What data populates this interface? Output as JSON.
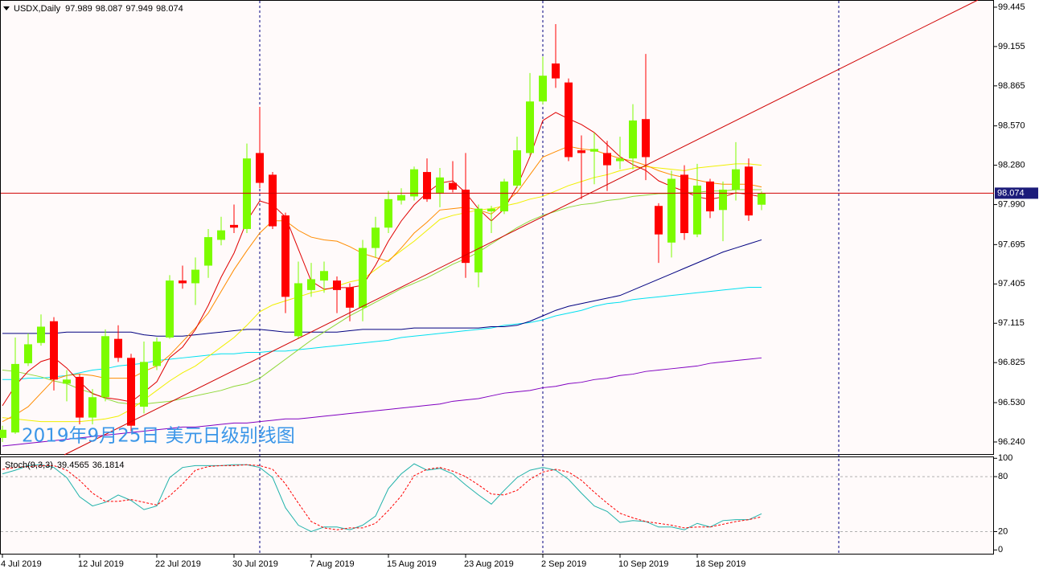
{
  "chart_data": {
    "type": "candlestick",
    "title": "USDX,Daily",
    "annotation": "2019年9月25日 美元日级别线图",
    "categories": [
      "4 Jul 2019",
      null,
      null,
      null,
      null,
      null,
      "12 Jul 2019",
      null,
      null,
      null,
      null,
      null,
      "22 Jul 2019",
      null,
      null,
      null,
      null,
      null,
      "30 Jul 2019",
      null,
      null,
      null,
      null,
      null,
      "7 Aug 2019",
      null,
      null,
      null,
      null,
      null,
      "15 Aug 2019",
      null,
      null,
      null,
      null,
      null,
      "23 Aug 2019",
      null,
      null,
      null,
      null,
      null,
      "2 Sep 2019",
      null,
      null,
      null,
      null,
      null,
      "10 Sep 2019",
      null,
      null,
      null,
      null,
      null,
      "18 Sep 2019",
      null,
      null,
      null,
      null,
      null
    ],
    "open": [
      96.27,
      96.31,
      96.82,
      96.97,
      97.13,
      96.67,
      96.72,
      96.42,
      96.57,
      97.0,
      96.86,
      96.5,
      96.8,
      97.01,
      97.43,
      97.41,
      97.54,
      97.73,
      97.84,
      97.81,
      98.37,
      98.21,
      97.91,
      97.02,
      97.36,
      97.43,
      97.43,
      97.38,
      97.23,
      97.67,
      97.82,
      98.02,
      98.05,
      98.23,
      98.07,
      98.15,
      98.1,
      97.49,
      97.94,
      97.94,
      98.13,
      98.37,
      98.75,
      99.03,
      98.89,
      98.39,
      98.38,
      98.37,
      98.31,
      98.33,
      98.62,
      97.98,
      97.71,
      98.21,
      97.77,
      98.16,
      97.95,
      98.1,
      98.27,
      97.989
    ],
    "high": [
      96.36,
      97.01,
      97.04,
      97.18,
      97.16,
      96.77,
      96.74,
      96.63,
      97.07,
      97.1,
      96.89,
      96.98,
      97.01,
      97.47,
      97.54,
      97.6,
      97.81,
      97.9,
      97.99,
      98.44,
      98.71,
      98.23,
      97.93,
      97.57,
      97.56,
      97.57,
      97.46,
      97.41,
      97.73,
      97.9,
      98.09,
      98.11,
      98.27,
      98.33,
      98.26,
      98.31,
      98.37,
      97.99,
      97.98,
      98.18,
      98.49,
      98.96,
      99.08,
      99.32,
      98.92,
      98.5,
      98.52,
      98.46,
      98.49,
      98.73,
      99.1,
      98.0,
      98.24,
      98.28,
      98.29,
      98.18,
      98.16,
      98.45,
      98.33,
      98.087
    ],
    "low": [
      96.24,
      96.3,
      96.8,
      96.95,
      96.62,
      96.54,
      96.37,
      96.37,
      96.54,
      96.83,
      96.32,
      96.45,
      96.77,
      97.0,
      97.37,
      97.25,
      97.45,
      97.69,
      97.78,
      97.78,
      98.11,
      97.81,
      97.19,
      97.0,
      97.31,
      97.34,
      97.19,
      97.13,
      97.13,
      97.6,
      97.78,
      97.99,
      98.02,
      98.01,
      97.97,
      98.08,
      97.45,
      97.38,
      97.78,
      97.92,
      98.11,
      98.35,
      98.73,
      98.85,
      98.31,
      98.03,
      98.14,
      98.09,
      98.25,
      98.25,
      98.17,
      97.56,
      97.6,
      97.73,
      97.75,
      97.89,
      97.72,
      98.02,
      97.87,
      97.949
    ],
    "close": [
      96.33,
      96.815,
      96.96,
      97.09,
      96.7,
      96.7,
      96.42,
      96.57,
      97.02,
      96.86,
      96.36,
      96.83,
      96.98,
      97.43,
      97.41,
      97.51,
      97.75,
      97.8,
      97.82,
      98.33,
      98.15,
      97.83,
      97.31,
      97.41,
      97.44,
      97.5,
      97.36,
      97.23,
      97.67,
      97.82,
      98.03,
      98.06,
      98.25,
      98.03,
      98.19,
      98.1,
      97.56,
      97.96,
      97.96,
      98.16,
      98.39,
      98.75,
      98.94,
      98.92,
      98.34,
      98.37,
      98.4,
      98.28,
      98.33,
      98.61,
      98.34,
      97.77,
      98.18,
      97.78,
      98.13,
      97.94,
      98.1,
      98.25,
      97.91,
      98.074
    ],
    "up_color": "#7cfc00",
    "down_color": "#ff0000",
    "ylim": [
      96.145,
      99.498
    ],
    "yticks": [
      99.445,
      99.155,
      98.865,
      {
        "value": 98.57,
        "label": "98.570"
      },
      {
        "value": 98.28,
        "label": "98.280"
      },
      {
        "value": 97.99,
        "label": "97.990"
      },
      97.695,
      97.405,
      97.115,
      96.825,
      {
        "value": 96.53,
        "label": "96.530"
      },
      {
        "value": 96.24,
        "label": "96.240"
      }
    ],
    "overlays": [
      {
        "color": "#8000c0",
        "values": [
          96.21,
          96.22,
          96.23,
          96.24,
          96.25,
          96.26,
          96.27,
          96.28,
          96.29,
          96.3,
          96.31,
          96.32,
          96.33,
          96.34,
          96.35,
          96.35,
          96.36,
          96.37,
          96.38,
          96.38,
          96.39,
          96.4,
          96.41,
          96.41,
          96.42,
          96.43,
          96.44,
          96.45,
          96.46,
          96.47,
          96.48,
          96.49,
          96.5,
          96.51,
          96.52,
          96.54,
          96.55,
          96.56,
          96.58,
          96.6,
          96.61,
          96.62,
          96.64,
          96.65,
          96.67,
          96.68,
          96.7,
          96.71,
          96.73,
          96.74,
          96.76,
          96.77,
          96.78,
          96.79,
          96.8,
          96.82,
          96.83,
          96.84,
          96.85,
          96.86
        ]
      },
      {
        "color": "#00e0f0",
        "values": [
          96.7,
          96.7,
          96.71,
          96.71,
          96.72,
          96.73,
          96.75,
          96.77,
          96.78,
          96.8,
          96.81,
          96.82,
          96.84,
          96.85,
          96.86,
          96.87,
          96.88,
          96.89,
          96.89,
          96.9,
          96.9,
          96.91,
          96.91,
          96.92,
          96.93,
          96.94,
          96.95,
          96.96,
          96.97,
          96.98,
          96.99,
          97.01,
          97.02,
          97.03,
          97.04,
          97.05,
          97.06,
          97.07,
          97.08,
          97.1,
          97.11,
          97.12,
          97.14,
          97.17,
          97.19,
          97.21,
          97.24,
          97.26,
          97.27,
          97.29,
          97.3,
          97.31,
          97.32,
          97.33,
          97.34,
          97.35,
          97.36,
          97.37,
          97.38,
          97.38
        ]
      },
      {
        "color": "#000080",
        "values": [
          97.04,
          97.04,
          97.04,
          97.04,
          97.04,
          97.05,
          97.05,
          97.05,
          97.05,
          97.05,
          97.05,
          97.03,
          97.02,
          97.02,
          97.02,
          97.03,
          97.04,
          97.05,
          97.06,
          97.07,
          97.07,
          97.06,
          97.05,
          97.05,
          97.05,
          97.05,
          97.05,
          97.06,
          97.07,
          97.07,
          97.07,
          97.07,
          97.08,
          97.08,
          97.08,
          97.08,
          97.08,
          97.08,
          97.09,
          97.09,
          97.1,
          97.13,
          97.17,
          97.21,
          97.24,
          97.26,
          97.28,
          97.3,
          97.32,
          97.36,
          97.4,
          97.44,
          97.48,
          97.52,
          97.56,
          97.6,
          97.64,
          97.67,
          97.7,
          97.73
        ]
      },
      {
        "color": "#8fd838",
        "values": [
          96.77,
          96.76,
          96.74,
          96.72,
          96.69,
          96.67,
          96.63,
          96.6,
          96.56,
          96.53,
          96.52,
          96.52,
          96.53,
          96.54,
          96.56,
          96.58,
          96.6,
          96.62,
          96.65,
          96.67,
          96.71,
          96.78,
          96.85,
          96.92,
          96.99,
          97.05,
          97.11,
          97.17,
          97.22,
          97.27,
          97.32,
          97.37,
          97.41,
          97.45,
          97.5,
          97.55,
          97.59,
          97.64,
          97.7,
          97.76,
          97.82,
          97.87,
          97.91,
          97.94,
          97.97,
          97.99,
          98.0,
          98.02,
          98.03,
          98.05,
          98.06,
          98.07,
          98.07,
          98.08,
          98.08,
          98.09,
          98.09,
          98.1,
          98.1,
          98.1
        ]
      },
      {
        "color": "#f0f000",
        "values": [
          96.42,
          96.41,
          96.4,
          96.39,
          96.39,
          96.39,
          96.39,
          96.4,
          96.41,
          96.43,
          96.48,
          96.55,
          96.62,
          96.69,
          96.75,
          96.8,
          96.87,
          96.94,
          97.01,
          97.1,
          97.2,
          97.25,
          97.28,
          97.31,
          97.34,
          97.36,
          97.39,
          97.42,
          97.44,
          97.51,
          97.58,
          97.65,
          97.72,
          97.8,
          97.88,
          97.91,
          97.93,
          97.95,
          97.96,
          97.98,
          98.0,
          98.03,
          98.05,
          98.09,
          98.13,
          98.16,
          98.19,
          98.21,
          98.24,
          98.26,
          98.27,
          98.26,
          98.25,
          98.24,
          98.26,
          98.27,
          98.28,
          98.29,
          98.29,
          98.28
        ]
      },
      {
        "color": "#ff8c00",
        "values": [
          96.39,
          96.44,
          96.5,
          96.6,
          96.7,
          96.73,
          96.74,
          96.73,
          96.71,
          96.71,
          96.71,
          96.76,
          96.8,
          96.88,
          96.98,
          97.08,
          97.19,
          97.35,
          97.51,
          97.65,
          97.78,
          97.87,
          97.87,
          97.8,
          97.75,
          97.73,
          97.72,
          97.68,
          97.63,
          97.6,
          97.57,
          97.67,
          97.78,
          97.86,
          97.95,
          97.96,
          97.97,
          97.95,
          97.92,
          98.0,
          98.08,
          98.21,
          98.34,
          98.38,
          98.42,
          98.4,
          98.39,
          98.36,
          98.33,
          98.31,
          98.28,
          98.24,
          98.21,
          98.19,
          98.17,
          98.15,
          98.14,
          98.14,
          98.14,
          98.12
        ]
      },
      {
        "color": "#e00000",
        "values": [
          96.507,
          96.655,
          96.761,
          96.833,
          96.862,
          96.785,
          96.684,
          96.596,
          96.566,
          96.554,
          96.536,
          96.607,
          96.684,
          96.862,
          96.939,
          97.069,
          97.247,
          97.455,
          97.632,
          97.869,
          98.017,
          97.988,
          97.899,
          97.662,
          97.425,
          97.366,
          97.378,
          97.378,
          97.395,
          97.543,
          97.721,
          97.869,
          97.988,
          98.077,
          98.148,
          98.165,
          98.077,
          97.958,
          97.869,
          97.958,
          98.124,
          98.343,
          98.61,
          98.669,
          98.622,
          98.58,
          98.521,
          98.432,
          98.343,
          98.284,
          98.242,
          98.165,
          98.124,
          98.088,
          98.047,
          98.029,
          98.047,
          98.077,
          98.065,
          98.047
        ]
      }
    ],
    "indicator": {
      "type": "line",
      "label": "Stoch(9,3,3)",
      "ylim": [
        -5,
        102
      ],
      "yticks": [
        100,
        80,
        20,
        0
      ],
      "grid_levels": [
        80,
        20
      ],
      "series": [
        {
          "color": "#20b2aa",
          "values": [
            83,
            87,
            92,
            93,
            90,
            79,
            58,
            48,
            52,
            60,
            54,
            44,
            48,
            79,
            90,
            92,
            92,
            92,
            93,
            93,
            90,
            79,
            46,
            27,
            20,
            25,
            25,
            22,
            27,
            37,
            67,
            83,
            94,
            87,
            89,
            83,
            71,
            60,
            50,
            65,
            79,
            87,
            90,
            87,
            77,
            62,
            48,
            42,
            30,
            32,
            31,
            25,
            25,
            22,
            29,
            25,
            32,
            33,
            33,
            39.4565
          ]
        },
        {
          "color": "#ff0000",
          "dashed": true,
          "values": [
            88,
            90,
            91,
            92,
            92,
            87,
            76,
            62,
            53,
            53,
            55,
            52,
            49,
            59,
            72,
            87,
            91,
            92,
            92,
            93,
            92,
            88,
            72,
            51,
            31,
            24,
            22,
            24,
            24,
            29,
            43,
            59,
            81,
            88,
            90,
            86,
            80,
            71,
            61,
            60,
            65,
            77,
            85,
            88,
            85,
            76,
            63,
            51,
            40,
            35,
            31,
            29,
            27,
            24,
            25,
            25,
            28,
            31,
            33,
            36.1814
          ]
        }
      ]
    }
  }
}
